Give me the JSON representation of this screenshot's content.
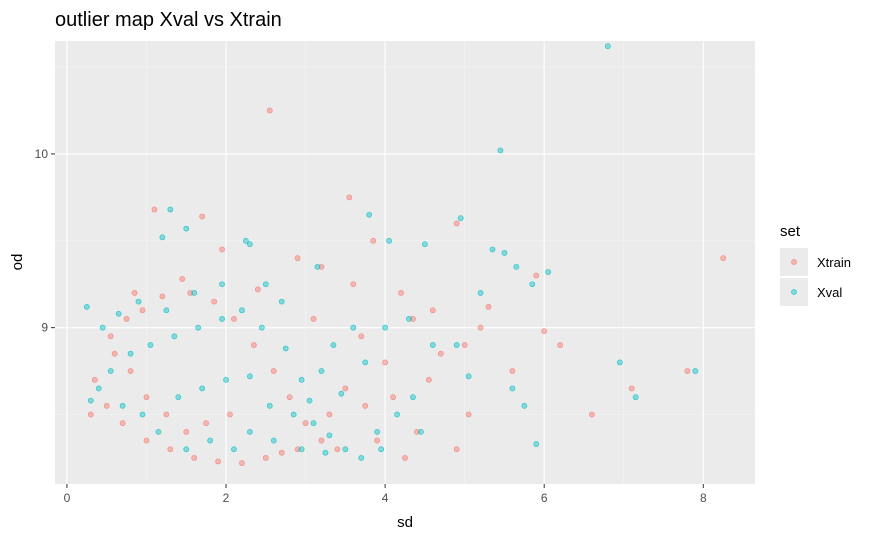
{
  "chart_data": {
    "type": "scatter",
    "title": "outlier map Xval vs Xtrain",
    "xlabel": "sd",
    "ylabel": "od",
    "xlim": [
      -0.15,
      8.65
    ],
    "ylim": [
      8.1,
      10.65
    ],
    "x_ticks": [
      0,
      2,
      4,
      6,
      8
    ],
    "y_ticks": [
      9,
      10
    ],
    "grid": true,
    "legend": {
      "title": "set",
      "position": "right"
    },
    "series": [
      {
        "name": "Xtrain",
        "color": "#F8766D",
        "points": [
          [
            2.55,
            10.25
          ],
          [
            3.55,
            9.75
          ],
          [
            1.1,
            9.68
          ],
          [
            1.7,
            9.64
          ],
          [
            1.95,
            9.45
          ],
          [
            4.9,
            9.6
          ],
          [
            3.85,
            9.5
          ],
          [
            8.25,
            9.4
          ],
          [
            2.9,
            9.4
          ],
          [
            3.2,
            9.35
          ],
          [
            3.6,
            9.25
          ],
          [
            4.2,
            9.2
          ],
          [
            4.6,
            9.1
          ],
          [
            5.3,
            9.12
          ],
          [
            5.9,
            9.3
          ],
          [
            6.0,
            8.98
          ],
          [
            4.35,
            9.05
          ],
          [
            3.1,
            9.05
          ],
          [
            2.4,
            9.22
          ],
          [
            1.45,
            9.28
          ],
          [
            0.85,
            9.2
          ],
          [
            7.1,
            8.65
          ],
          [
            7.8,
            8.75
          ],
          [
            6.6,
            8.5
          ],
          [
            5.05,
            8.5
          ],
          [
            4.9,
            8.3
          ],
          [
            4.4,
            8.4
          ],
          [
            3.9,
            8.35
          ],
          [
            5.0,
            8.9
          ],
          [
            4.7,
            8.85
          ],
          [
            4.0,
            8.8
          ],
          [
            3.7,
            8.95
          ],
          [
            4.1,
            8.6
          ],
          [
            3.5,
            8.65
          ],
          [
            3.3,
            8.5
          ],
          [
            2.9,
            8.3
          ],
          [
            2.7,
            8.28
          ],
          [
            2.5,
            8.25
          ],
          [
            2.2,
            8.22
          ],
          [
            1.9,
            8.23
          ],
          [
            1.6,
            8.25
          ],
          [
            1.3,
            8.3
          ],
          [
            1.0,
            8.35
          ],
          [
            0.7,
            8.45
          ],
          [
            0.5,
            8.55
          ],
          [
            0.35,
            8.7
          ],
          [
            0.3,
            8.5
          ],
          [
            0.55,
            8.95
          ],
          [
            0.75,
            9.05
          ],
          [
            0.95,
            9.1
          ],
          [
            1.2,
            9.18
          ],
          [
            1.55,
            9.2
          ],
          [
            1.85,
            9.15
          ],
          [
            2.1,
            9.05
          ],
          [
            2.35,
            8.9
          ],
          [
            2.6,
            8.75
          ],
          [
            2.8,
            8.6
          ],
          [
            3.0,
            8.45
          ],
          [
            3.2,
            8.35
          ],
          [
            3.4,
            8.3
          ],
          [
            4.55,
            8.7
          ],
          [
            5.2,
            9.0
          ],
          [
            5.6,
            8.75
          ],
          [
            6.2,
            8.9
          ],
          [
            4.25,
            8.25
          ],
          [
            3.75,
            8.55
          ],
          [
            2.05,
            8.5
          ],
          [
            1.75,
            8.45
          ],
          [
            1.5,
            8.4
          ],
          [
            1.25,
            8.5
          ],
          [
            1.0,
            8.6
          ],
          [
            0.8,
            8.75
          ],
          [
            0.6,
            8.85
          ]
        ]
      },
      {
        "name": "Xval",
        "color": "#00BFC4",
        "points": [
          [
            6.8,
            10.62
          ],
          [
            5.45,
            10.02
          ],
          [
            4.95,
            9.63
          ],
          [
            3.8,
            9.65
          ],
          [
            2.25,
            9.5
          ],
          [
            2.3,
            9.48
          ],
          [
            1.5,
            9.57
          ],
          [
            1.3,
            9.68
          ],
          [
            1.2,
            9.52
          ],
          [
            3.15,
            9.35
          ],
          [
            4.05,
            9.5
          ],
          [
            4.5,
            9.48
          ],
          [
            5.35,
            9.45
          ],
          [
            5.5,
            9.43
          ],
          [
            5.65,
            9.35
          ],
          [
            6.05,
            9.32
          ],
          [
            5.85,
            9.25
          ],
          [
            5.2,
            9.2
          ],
          [
            4.9,
            8.9
          ],
          [
            5.05,
            8.72
          ],
          [
            5.6,
            8.65
          ],
          [
            5.75,
            8.55
          ],
          [
            5.9,
            8.33
          ],
          [
            6.95,
            8.8
          ],
          [
            7.9,
            8.75
          ],
          [
            7.15,
            8.6
          ],
          [
            4.6,
            8.9
          ],
          [
            4.3,
            9.05
          ],
          [
            4.0,
            9.0
          ],
          [
            3.6,
            9.0
          ],
          [
            3.35,
            8.9
          ],
          [
            3.75,
            8.8
          ],
          [
            4.15,
            8.5
          ],
          [
            4.35,
            8.6
          ],
          [
            4.45,
            8.4
          ],
          [
            3.95,
            8.3
          ],
          [
            3.7,
            8.25
          ],
          [
            3.9,
            8.4
          ],
          [
            2.95,
            8.7
          ],
          [
            2.75,
            8.88
          ],
          [
            2.45,
            9.0
          ],
          [
            2.5,
            9.25
          ],
          [
            2.7,
            9.15
          ],
          [
            2.2,
            9.1
          ],
          [
            1.95,
            9.05
          ],
          [
            1.65,
            9.0
          ],
          [
            1.35,
            8.95
          ],
          [
            1.05,
            8.9
          ],
          [
            0.8,
            8.85
          ],
          [
            0.55,
            8.75
          ],
          [
            0.4,
            8.65
          ],
          [
            0.3,
            8.58
          ],
          [
            0.25,
            9.12
          ],
          [
            0.45,
            9.0
          ],
          [
            0.65,
            9.08
          ],
          [
            0.9,
            9.15
          ],
          [
            1.25,
            9.1
          ],
          [
            1.6,
            9.2
          ],
          [
            1.95,
            9.25
          ],
          [
            3.1,
            8.45
          ],
          [
            3.3,
            8.38
          ],
          [
            3.5,
            8.3
          ],
          [
            3.25,
            8.28
          ],
          [
            2.95,
            8.3
          ],
          [
            2.6,
            8.35
          ],
          [
            2.3,
            8.4
          ],
          [
            2.1,
            8.3
          ],
          [
            1.8,
            8.35
          ],
          [
            1.5,
            8.3
          ],
          [
            1.15,
            8.4
          ],
          [
            0.95,
            8.5
          ],
          [
            0.7,
            8.55
          ],
          [
            1.4,
            8.6
          ],
          [
            1.7,
            8.65
          ],
          [
            2.0,
            8.7
          ],
          [
            2.3,
            8.72
          ],
          [
            2.55,
            8.55
          ],
          [
            2.85,
            8.5
          ],
          [
            3.05,
            8.58
          ],
          [
            3.45,
            8.62
          ],
          [
            3.2,
            8.75
          ]
        ]
      }
    ]
  }
}
